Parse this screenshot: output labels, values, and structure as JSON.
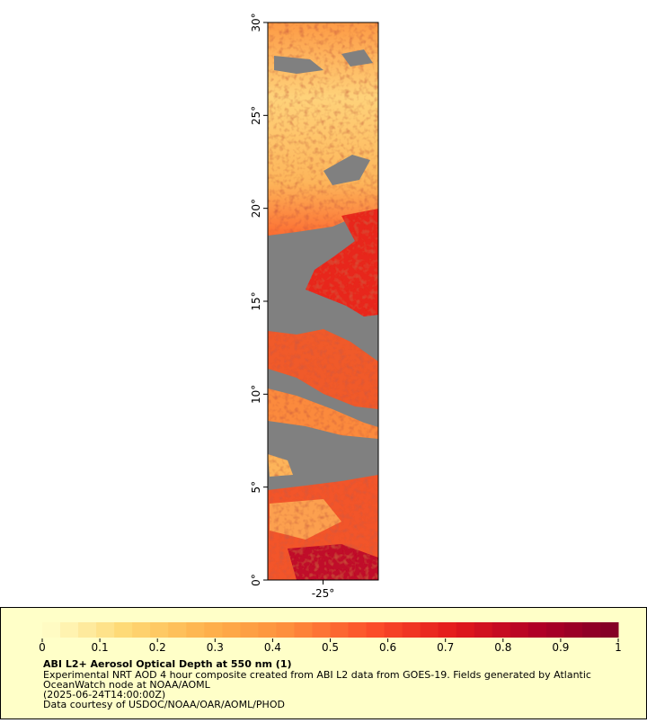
{
  "map": {
    "xlim": [
      -28,
      -22
    ],
    "ylim": [
      0,
      30
    ],
    "xticks": [
      {
        "value": -25,
        "label": "-25°"
      }
    ],
    "yticks": [
      {
        "value": 0,
        "label": "0°"
      },
      {
        "value": 5,
        "label": "5°"
      },
      {
        "value": 10,
        "label": "10°"
      },
      {
        "value": 15,
        "label": "15°"
      },
      {
        "value": 20,
        "label": "20°"
      },
      {
        "value": 25,
        "label": "25°"
      },
      {
        "value": 30,
        "label": "30°"
      }
    ]
  },
  "colorbar": {
    "range": [
      0,
      1
    ],
    "ticks": [
      0,
      0.1,
      0.2,
      0.3,
      0.4,
      0.5,
      0.6,
      0.7,
      0.8,
      0.9,
      1
    ],
    "colors": [
      "#ffffcc",
      "#fed976",
      "#feb24c",
      "#fd8d3c",
      "#fc4e2a",
      "#e31a1c",
      "#b10026",
      "#800026"
    ]
  },
  "caption": {
    "title": "ABI L2+ Aerosol Optical Depth at 550 nm (1)",
    "lines": [
      "Experimental NRT AOD 4 hour composite created from ABI L2 data from GOES-19. Fields generated by Atlantic",
      "OceanWatch node at NOAA/AOML",
      "(2025-06-24T14:00:00Z)",
      "Data courtesy of USDOC/NOAA/OAR/AOML/PHOD"
    ]
  }
}
